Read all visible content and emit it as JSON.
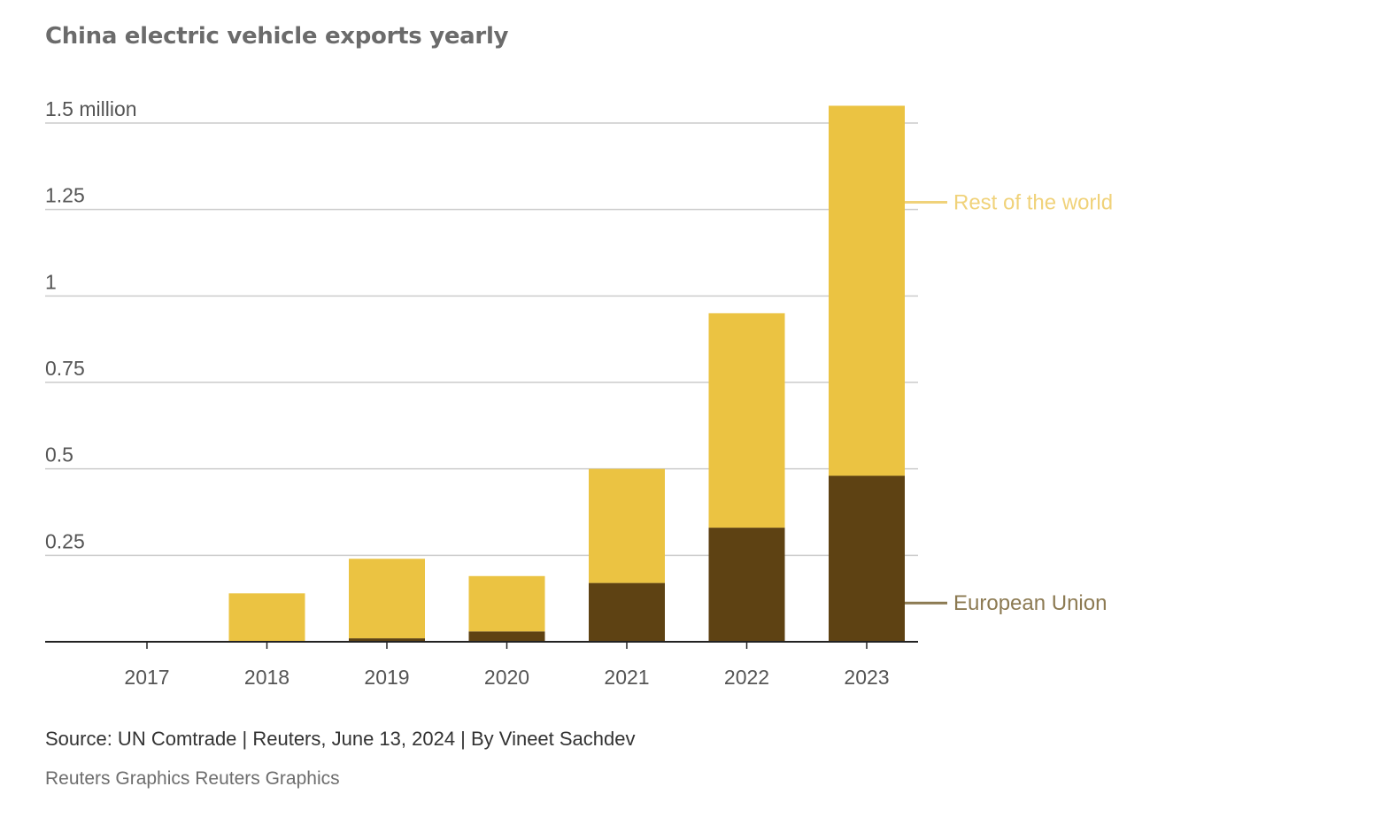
{
  "chart_data": {
    "type": "bar",
    "stacked": true,
    "title": "China electric vehicle exports yearly",
    "xlabel": "",
    "ylabel": "",
    "categories": [
      "2017",
      "2018",
      "2019",
      "2020",
      "2021",
      "2022",
      "2023"
    ],
    "series": [
      {
        "name": "European Union",
        "color": "#5e4213",
        "label_color": "#8c7a52",
        "values": [
          0.0,
          0.0,
          0.01,
          0.03,
          0.17,
          0.33,
          0.48
        ]
      },
      {
        "name": "Rest of the world",
        "color": "#ebc342",
        "label_color": "#f0d27a",
        "values": [
          0.0,
          0.14,
          0.23,
          0.16,
          0.33,
          0.62,
          1.07
        ]
      }
    ],
    "ylim": [
      0,
      1.5
    ],
    "yticks": [
      0.25,
      0.5,
      0.75,
      1,
      1.25,
      1.5
    ],
    "ytick_labels": [
      "0.25",
      "0.5",
      "0.75",
      "1",
      "1.25",
      "1.5 million"
    ],
    "grid": true,
    "legend": "inline-right"
  },
  "footer": {
    "source": "Source: UN Comtrade | Reuters, June 13, 2024 | By Vineet Sachdev",
    "credit": "Reuters Graphics Reuters Graphics"
  }
}
